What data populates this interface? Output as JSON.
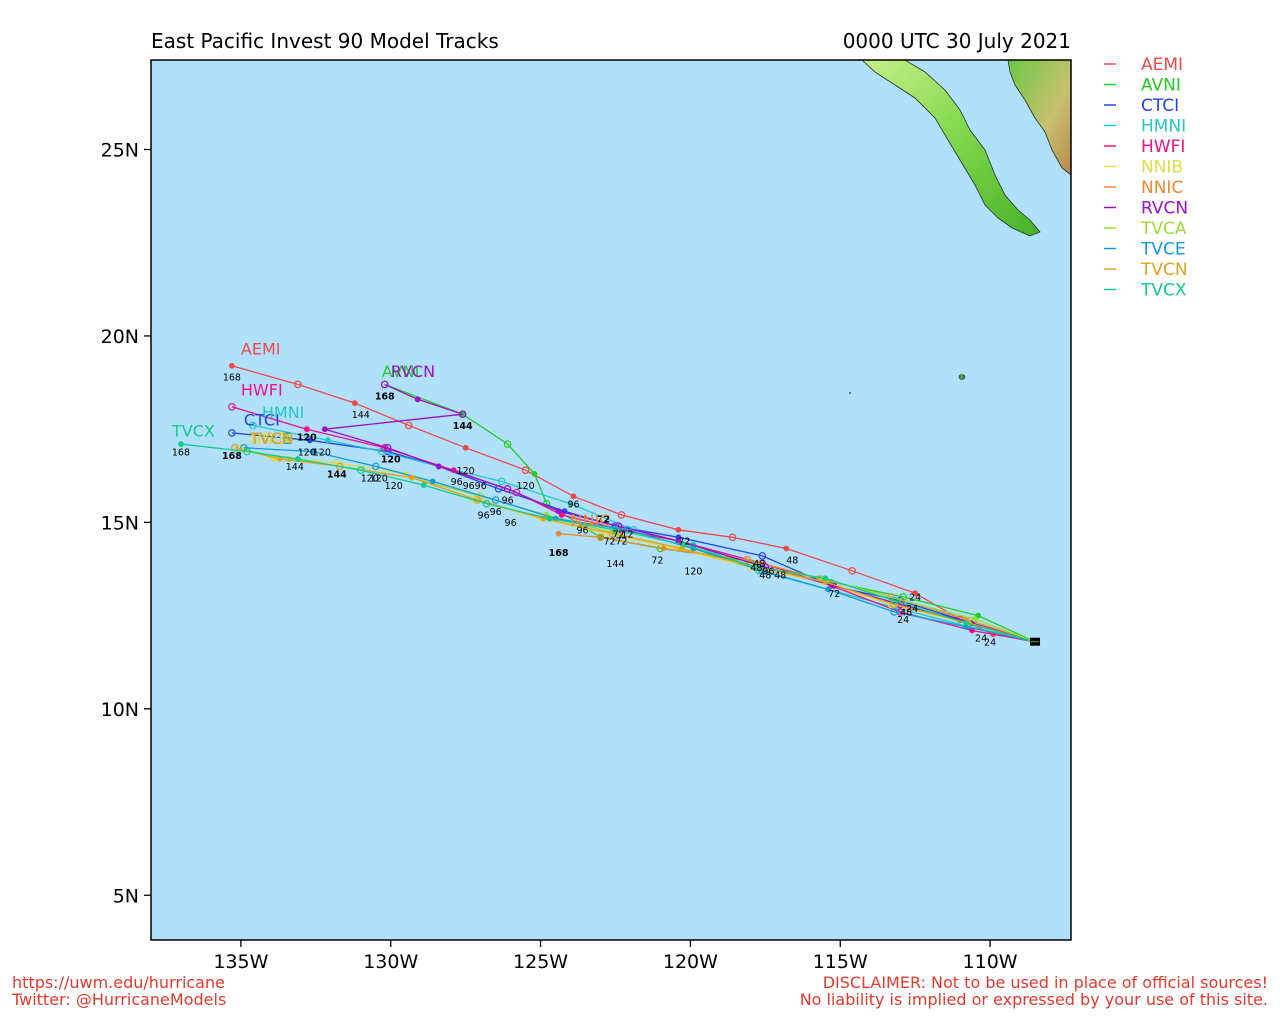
{
  "title_left": "East Pacific Invest 90 Model Tracks",
  "title_right": "0000 UTC 30 July 2021",
  "footer": {
    "url": "https://uwm.edu/hurricane",
    "twitter": "Twitter: @HurricaneModels",
    "disclaimer_1": "DISCLAIMER: Not to be used in place of official sources!",
    "disclaimer_2": "No liability is implied or expressed by your use of this site."
  },
  "colors": {
    "ocean": "#b0e0fc",
    "land_light": "#9be86a",
    "land_mid": "#5fc83a",
    "land_high": "#d8b478"
  },
  "map": {
    "lon_range": [
      -138.0,
      -107.3
    ],
    "lat_range": [
      3.8,
      27.4
    ],
    "x_ticks": [
      {
        "lon": -135,
        "label": "135W"
      },
      {
        "lon": -130,
        "label": "130W"
      },
      {
        "lon": -125,
        "label": "125W"
      },
      {
        "lon": -120,
        "label": "120W"
      },
      {
        "lon": -115,
        "label": "115W"
      },
      {
        "lon": -110,
        "label": "110W"
      }
    ],
    "y_ticks": [
      {
        "lat": 5,
        "label": "5N"
      },
      {
        "lat": 10,
        "label": "10N"
      },
      {
        "lat": 15,
        "label": "15N"
      },
      {
        "lat": 20,
        "label": "20N"
      },
      {
        "lat": 25,
        "label": "25N"
      }
    ]
  },
  "storm_start": {
    "lon": -108.5,
    "lat": 11.8
  },
  "models": [
    {
      "name": "AEMI",
      "color": "#f04848",
      "points": [
        [
          -108.5,
          11.8
        ],
        [
          -109.9,
          12.0
        ],
        [
          -111.0,
          12.4
        ],
        [
          -112.5,
          13.1
        ],
        [
          -114.6,
          13.7
        ],
        [
          -116.8,
          14.3
        ],
        [
          -118.6,
          14.6
        ],
        [
          -120.4,
          14.8
        ],
        [
          -122.3,
          15.2
        ],
        [
          -123.9,
          15.7
        ],
        [
          -125.5,
          16.4
        ],
        [
          -127.5,
          17.0
        ],
        [
          -129.4,
          17.6
        ],
        [
          -131.2,
          18.2
        ],
        [
          -133.1,
          18.7
        ],
        [
          -135.3,
          19.2
        ]
      ],
      "hour_labels": [
        {
          "lon": -110.0,
          "lat": 11.7,
          "text": "24"
        },
        {
          "lon": -116.6,
          "lat": 13.9,
          "text": "48"
        },
        {
          "lon": -127.5,
          "lat": 16.3,
          "text": "120"
        },
        {
          "lon": -131.0,
          "lat": 17.8,
          "text": "144"
        },
        {
          "lon": -135.3,
          "lat": 18.8,
          "text": "168"
        }
      ],
      "label": {
        "lon": -135.0,
        "lat": 19.5
      }
    },
    {
      "name": "AVNI",
      "color": "#22cc22",
      "points": [
        [
          -108.5,
          11.8
        ],
        [
          -110.4,
          12.5
        ],
        [
          -112.9,
          13.0
        ],
        [
          -115.3,
          13.4
        ],
        [
          -117.6,
          13.9
        ],
        [
          -119.2,
          14.1
        ],
        [
          -121.0,
          14.3
        ],
        [
          -123.0,
          14.6
        ],
        [
          -124.8,
          15.5
        ],
        [
          -125.2,
          16.3
        ],
        [
          -126.1,
          17.1
        ],
        [
          -127.6,
          17.9
        ],
        [
          -130.2,
          18.7
        ]
      ],
      "hour_labels": [],
      "label": {
        "lon": -130.3,
        "lat": 18.9
      }
    },
    {
      "name": "CTCI",
      "color": "#2244ee",
      "points": [
        [
          -108.5,
          11.8
        ],
        [
          -110.6,
          12.3
        ],
        [
          -113.0,
          12.9
        ],
        [
          -115.3,
          13.3
        ],
        [
          -117.6,
          14.1
        ],
        [
          -120.4,
          14.6
        ],
        [
          -122.5,
          14.9
        ],
        [
          -124.2,
          15.3
        ],
        [
          -126.4,
          15.9
        ],
        [
          -128.4,
          16.5
        ],
        [
          -130.1,
          16.9
        ],
        [
          -132.7,
          17.2
        ],
        [
          -135.3,
          17.4
        ]
      ],
      "hour_labels": [],
      "label": {
        "lon": -134.9,
        "lat": 17.6
      }
    },
    {
      "name": "HMNI",
      "color": "#22c8c8",
      "points": [
        [
          -108.5,
          11.8
        ],
        [
          -110.7,
          12.2
        ],
        [
          -113.1,
          12.7
        ],
        [
          -115.4,
          13.2
        ],
        [
          -117.7,
          13.7
        ],
        [
          -119.9,
          14.4
        ],
        [
          -121.9,
          14.8
        ],
        [
          -124.0,
          15.5
        ],
        [
          -126.3,
          16.1
        ],
        [
          -128.4,
          16.5
        ],
        [
          -130.3,
          16.9
        ],
        [
          -132.1,
          17.2
        ],
        [
          -134.6,
          17.6
        ]
      ],
      "hour_labels": [],
      "label": {
        "lon": -134.3,
        "lat": 17.8
      }
    },
    {
      "name": "HWFI",
      "color": "#ee1188",
      "points": [
        [
          -108.5,
          11.8
        ],
        [
          -110.6,
          12.1
        ],
        [
          -113.0,
          12.6
        ],
        [
          -115.3,
          13.3
        ],
        [
          -117.6,
          13.9
        ],
        [
          -120.4,
          14.5
        ],
        [
          -122.3,
          14.8
        ],
        [
          -124.3,
          15.2
        ],
        [
          -125.8,
          15.8
        ],
        [
          -127.9,
          16.4
        ],
        [
          -130.2,
          17.0
        ],
        [
          -132.8,
          17.5
        ],
        [
          -135.3,
          18.1
        ]
      ],
      "hour_labels": [],
      "label": {
        "lon": -135.0,
        "lat": 18.4
      }
    },
    {
      "name": "NNIB",
      "color": "#dddd44",
      "points": [
        [
          -108.5,
          11.8
        ],
        [
          -110.8,
          12.3
        ],
        [
          -113.3,
          12.8
        ],
        [
          -115.6,
          13.4
        ],
        [
          -118.0,
          13.8
        ],
        [
          -120.5,
          14.3
        ],
        [
          -122.8,
          14.7
        ],
        [
          -125.0,
          15.1
        ],
        [
          -127.2,
          15.6
        ],
        [
          -129.5,
          16.3
        ],
        [
          -131.8,
          16.6
        ],
        [
          -133.9,
          16.7
        ],
        [
          -135.0,
          17.0
        ]
      ],
      "hour_labels": [],
      "label": {
        "lon": -134.7,
        "lat": 17.1
      }
    },
    {
      "name": "NNIC",
      "color": "#f08830",
      "points": [
        [
          -108.5,
          11.8
        ],
        [
          -110.8,
          12.4
        ],
        [
          -113.3,
          13.0
        ],
        [
          -115.7,
          13.5
        ],
        [
          -118.1,
          14.0
        ],
        [
          -120.9,
          14.3
        ],
        [
          -123.0,
          14.6
        ],
        [
          -124.4,
          14.7
        ]
      ],
      "hour_labels": [],
      "label": {
        "lon": -124.0,
        "lat": 14.9
      }
    },
    {
      "name": "RVCN",
      "color": "#9911cc",
      "points": [
        [
          -108.5,
          11.8
        ],
        [
          -110.6,
          12.3
        ],
        [
          -113.0,
          12.8
        ],
        [
          -115.2,
          13.3
        ],
        [
          -117.5,
          13.8
        ],
        [
          -120.4,
          14.5
        ],
        [
          -122.4,
          14.9
        ],
        [
          -124.4,
          15.3
        ],
        [
          -126.1,
          15.9
        ],
        [
          -128.4,
          16.5
        ],
        [
          -130.1,
          17.0
        ],
        [
          -132.2,
          17.5
        ],
        [
          -127.6,
          17.9
        ],
        [
          -129.1,
          18.3
        ],
        [
          -130.2,
          18.7
        ]
      ],
      "hour_labels": [],
      "label": {
        "lon": -130.0,
        "lat": 18.9
      }
    },
    {
      "name": "TVCA",
      "color": "#99dd33",
      "points": [
        [
          -108.5,
          11.8
        ],
        [
          -110.5,
          12.4
        ],
        [
          -112.9,
          12.9
        ],
        [
          -115.6,
          13.5
        ],
        [
          -117.8,
          13.8
        ],
        [
          -120.3,
          14.3
        ],
        [
          -122.5,
          14.7
        ],
        [
          -124.8,
          15.2
        ],
        [
          -127.0,
          15.7
        ],
        [
          -129.3,
          16.2
        ],
        [
          -131.7,
          16.5
        ],
        [
          -133.4,
          16.7
        ],
        [
          -135.2,
          17.0
        ]
      ],
      "hour_labels": [],
      "label": {
        "lon": -134.7,
        "lat": 17.1
      }
    },
    {
      "name": "TVCE",
      "color": "#1199dd",
      "points": [
        [
          -108.5,
          11.8
        ],
        [
          -110.8,
          12.2
        ],
        [
          -113.2,
          12.6
        ],
        [
          -115.4,
          13.2
        ],
        [
          -117.6,
          13.7
        ],
        [
          -119.9,
          14.3
        ],
        [
          -122.1,
          14.8
        ],
        [
          -124.5,
          15.1
        ],
        [
          -126.5,
          15.6
        ],
        [
          -128.6,
          16.1
        ],
        [
          -130.5,
          16.5
        ],
        [
          -132.6,
          16.9
        ],
        [
          -134.9,
          17.0
        ]
      ],
      "hour_labels": [],
      "label": {
        "lon": -134.7,
        "lat": 17.1
      }
    },
    {
      "name": "TVCN",
      "color": "#e8a020",
      "points": [
        [
          -108.5,
          11.8
        ],
        [
          -110.7,
          12.3
        ],
        [
          -113.2,
          12.8
        ],
        [
          -115.5,
          13.4
        ],
        [
          -117.8,
          13.8
        ],
        [
          -120.3,
          14.3
        ],
        [
          -122.6,
          14.7
        ],
        [
          -124.9,
          15.1
        ],
        [
          -127.1,
          15.6
        ],
        [
          -129.3,
          16.2
        ],
        [
          -131.7,
          16.5
        ],
        [
          -133.7,
          16.7
        ],
        [
          -135.2,
          17.0
        ]
      ],
      "hour_labels": [],
      "label": {
        "lon": -134.7,
        "lat": 17.1
      }
    },
    {
      "name": "TVCX",
      "color": "#11cc88",
      "points": [
        [
          -108.5,
          11.8
        ],
        [
          -110.8,
          12.3
        ],
        [
          -113.2,
          12.9
        ],
        [
          -115.5,
          13.5
        ],
        [
          -117.8,
          13.8
        ],
        [
          -120.2,
          14.4
        ],
        [
          -122.5,
          14.8
        ],
        [
          -124.7,
          15.1
        ],
        [
          -126.8,
          15.5
        ],
        [
          -128.9,
          16.0
        ],
        [
          -131.0,
          16.4
        ],
        [
          -133.1,
          16.7
        ],
        [
          -134.8,
          16.9
        ],
        [
          -137.0,
          17.1
        ]
      ],
      "hour_labels": [
        {
          "lon": -137.0,
          "lat": 16.8,
          "text": "168"
        }
      ],
      "label": {
        "lon": -137.3,
        "lat": 17.3
      }
    }
  ],
  "cluster_hour_labels": [
    {
      "lon": -112.6,
      "lat": 12.6,
      "text": "24",
      "bold": false
    },
    {
      "lon": -112.9,
      "lat": 12.3,
      "text": "24",
      "bold": false
    },
    {
      "lon": -110.3,
      "lat": 11.8,
      "text": "24",
      "bold": false
    },
    {
      "lon": -112.5,
      "lat": 12.9,
      "text": "24",
      "bold": false
    },
    {
      "lon": -112.8,
      "lat": 12.5,
      "text": "48",
      "bold": false
    },
    {
      "lon": -117.5,
      "lat": 13.5,
      "text": "48",
      "bold": false
    },
    {
      "lon": -117.0,
      "lat": 13.5,
      "text": "48",
      "bold": false
    },
    {
      "lon": -117.7,
      "lat": 13.8,
      "text": "48",
      "bold": false
    },
    {
      "lon": -115.2,
      "lat": 13.0,
      "text": "72",
      "bold": false
    },
    {
      "lon": -121.1,
      "lat": 13.9,
      "text": "72",
      "bold": false
    },
    {
      "lon": -122.9,
      "lat": 15.0,
      "text": "72",
      "bold": true
    },
    {
      "lon": -122.7,
      "lat": 14.4,
      "text": "72",
      "bold": false
    },
    {
      "lon": -122.3,
      "lat": 14.4,
      "text": "72",
      "bold": false
    },
    {
      "lon": -120.2,
      "lat": 14.4,
      "text": "72",
      "bold": false
    },
    {
      "lon": -122.4,
      "lat": 14.6,
      "text": "72",
      "bold": false
    },
    {
      "lon": -122.1,
      "lat": 14.6,
      "text": "12",
      "bold": false
    },
    {
      "lon": -117.8,
      "lat": 13.7,
      "text": "48",
      "bold": false
    },
    {
      "lon": -117.4,
      "lat": 13.6,
      "text": "96",
      "bold": false
    },
    {
      "lon": -123.9,
      "lat": 15.4,
      "text": "96",
      "bold": false
    },
    {
      "lon": -123.6,
      "lat": 14.7,
      "text": "96",
      "bold": false
    },
    {
      "lon": -126.1,
      "lat": 15.5,
      "text": "96",
      "bold": false
    },
    {
      "lon": -126.9,
      "lat": 15.1,
      "text": "96",
      "bold": false
    },
    {
      "lon": -126.0,
      "lat": 14.9,
      "text": "96",
      "bold": false
    },
    {
      "lon": -126.5,
      "lat": 15.2,
      "text": "96",
      "bold": false
    },
    {
      "lon": -127.8,
      "lat": 16.0,
      "text": "96",
      "bold": false
    },
    {
      "lon": -127.4,
      "lat": 15.9,
      "text": "96",
      "bold": false
    },
    {
      "lon": -127.0,
      "lat": 15.9,
      "text": "96",
      "bold": false
    },
    {
      "lon": -125.5,
      "lat": 15.9,
      "text": "120",
      "bold": false
    },
    {
      "lon": -119.9,
      "lat": 13.6,
      "text": "120",
      "bold": false
    },
    {
      "lon": -130.0,
      "lat": 16.6,
      "text": "120",
      "bold": true
    },
    {
      "lon": -129.9,
      "lat": 15.9,
      "text": "120",
      "bold": false
    },
    {
      "lon": -130.7,
      "lat": 16.1,
      "text": "120",
      "bold": false
    },
    {
      "lon": -130.4,
      "lat": 16.1,
      "text": "120",
      "bold": false
    },
    {
      "lon": -132.8,
      "lat": 17.2,
      "text": "120",
      "bold": true
    },
    {
      "lon": -132.8,
      "lat": 16.8,
      "text": "120",
      "bold": false
    },
    {
      "lon": -132.3,
      "lat": 16.8,
      "text": "120",
      "bold": false
    },
    {
      "lon": -122.5,
      "lat": 13.8,
      "text": "144",
      "bold": false
    },
    {
      "lon": -127.6,
      "lat": 17.5,
      "text": "144",
      "bold": true
    },
    {
      "lon": -131.8,
      "lat": 16.2,
      "text": "144",
      "bold": true
    },
    {
      "lon": -133.2,
      "lat": 16.4,
      "text": "144",
      "bold": false
    },
    {
      "lon": -124.4,
      "lat": 14.1,
      "text": "168",
      "bold": true
    },
    {
      "lon": -130.2,
      "lat": 18.3,
      "text": "168",
      "bold": true
    },
    {
      "lon": -135.3,
      "lat": 16.7,
      "text": "168",
      "bold": true
    }
  ]
}
